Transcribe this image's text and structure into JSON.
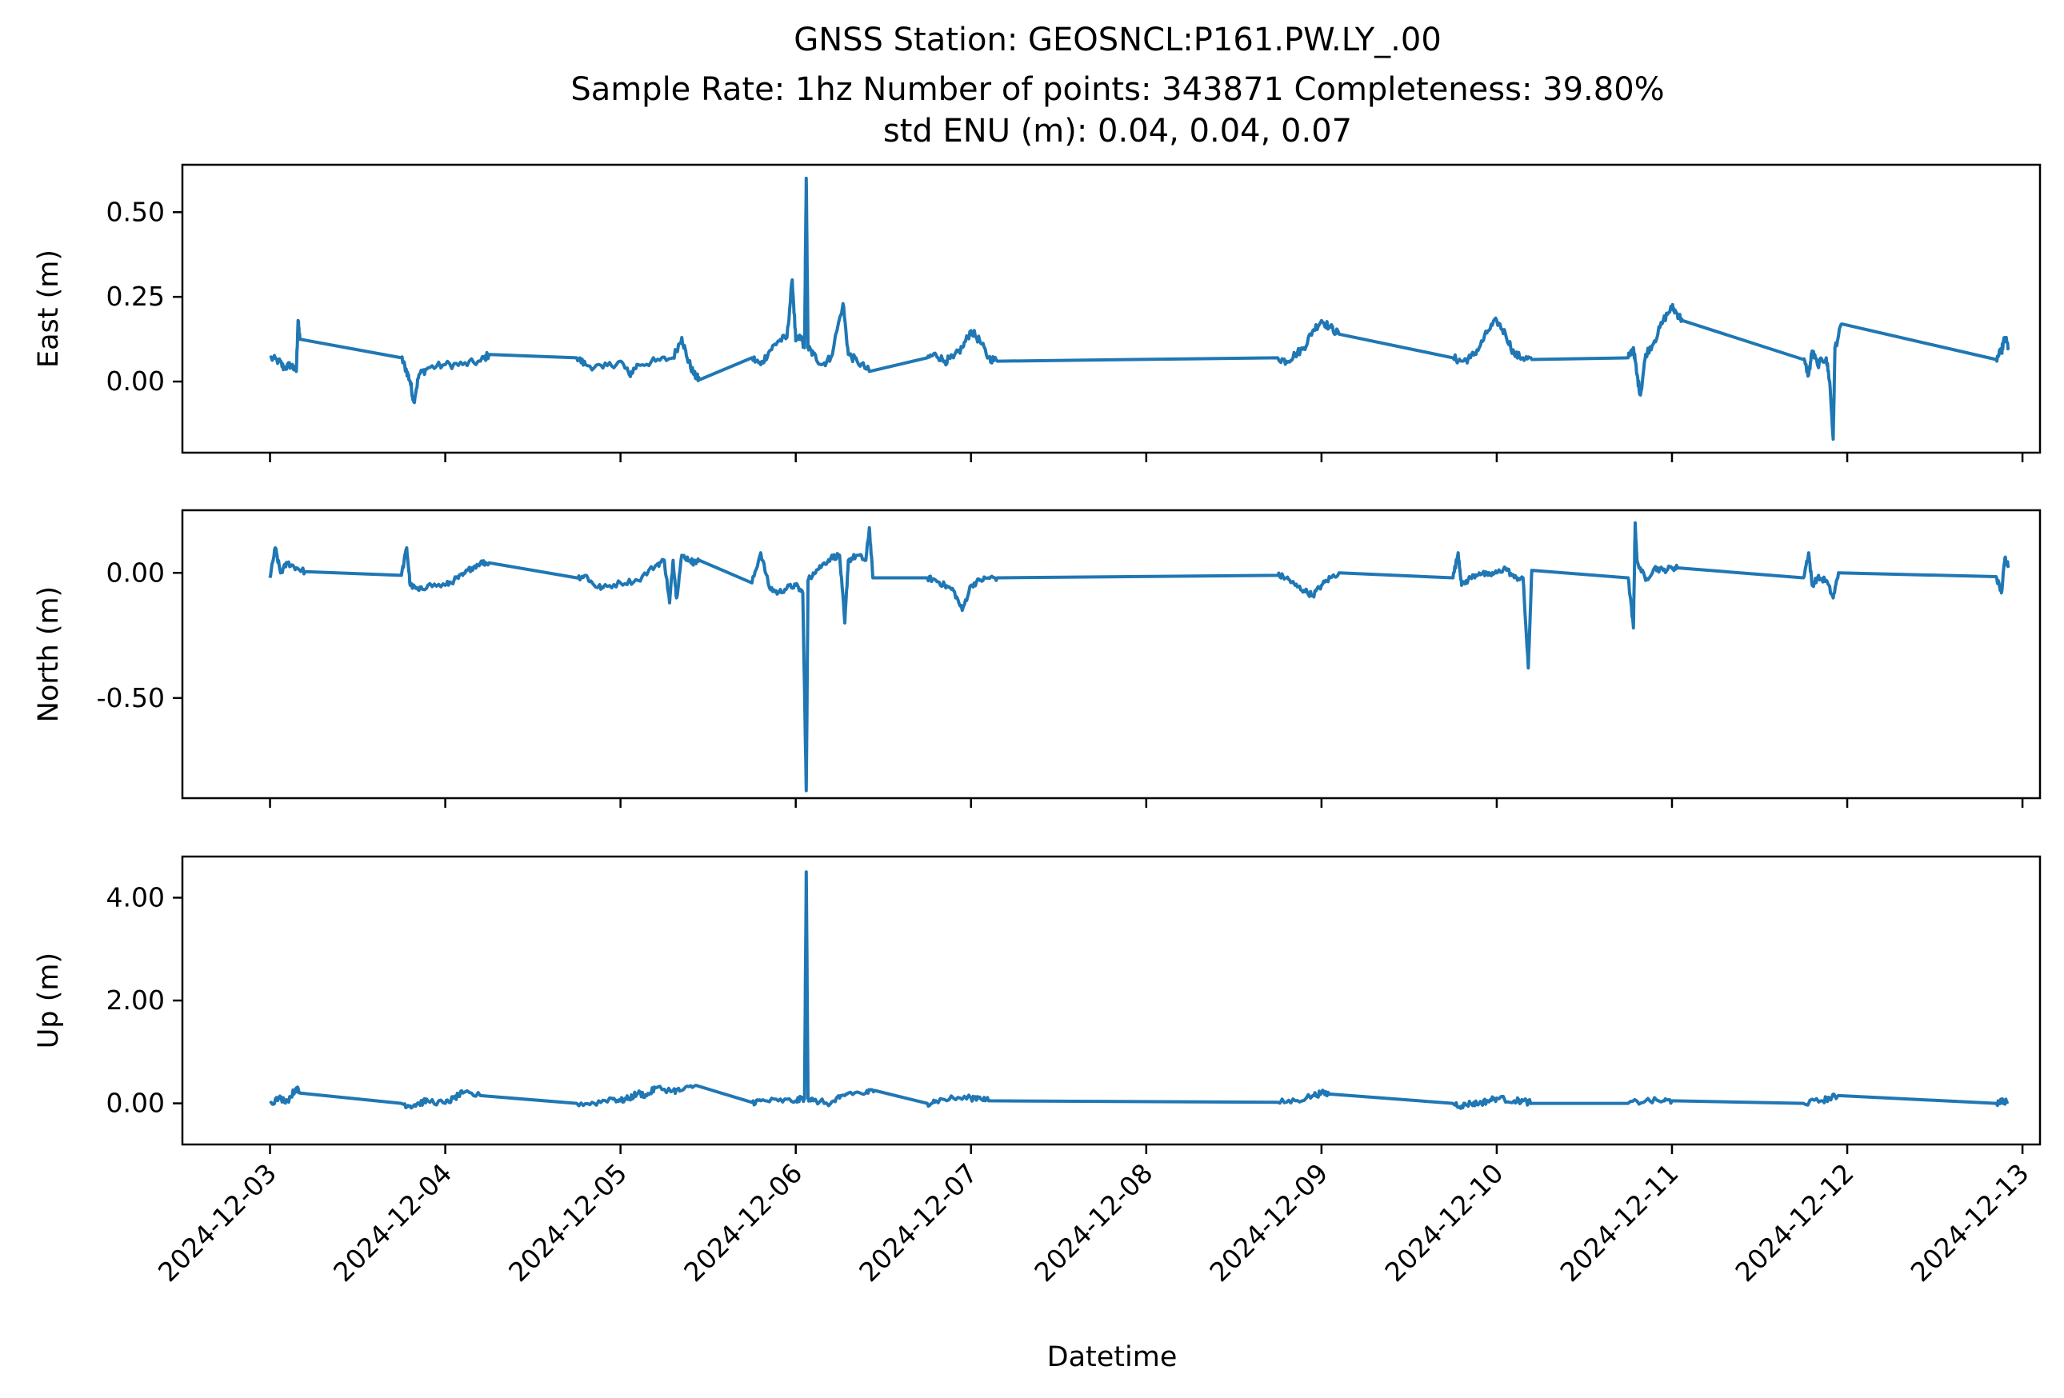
{
  "chart_data": {
    "type": "line",
    "title_lines": [
      "GNSS Station: GEOSNCL:P161.PW.LY_.00",
      "Sample Rate: 1hz   Number of points: 343871    Completeness:  39.80%",
      "std ENU (m):  0.04, 0.04, 0.07"
    ],
    "xlabel": "Datetime",
    "x_ticks": [
      "2024-12-03",
      "2024-12-04",
      "2024-12-05",
      "2024-12-06",
      "2024-12-07",
      "2024-12-08",
      "2024-12-09",
      "2024-12-10",
      "2024-12-11",
      "2024-12-12",
      "2024-12-13"
    ],
    "xlim_days": [
      -0.5,
      10.1
    ],
    "color": "#1f77b4",
    "grid": false,
    "panels": [
      {
        "ylabel": "East (m)",
        "ylim": [
          -0.21,
          0.64
        ],
        "y_ticks": [
          0.5,
          0.25,
          0.0
        ],
        "y_tick_labels": [
          "0.50",
          "0.25",
          "0.00"
        ],
        "noise": 0.012,
        "points": [
          [
            0.0,
            0.07
          ],
          [
            0.05,
            0.06
          ],
          [
            0.08,
            0.04
          ],
          [
            0.12,
            0.05
          ],
          [
            0.15,
            0.03
          ],
          [
            0.16,
            0.18
          ],
          [
            0.17,
            0.125
          ],
          [
            0.75,
            0.07
          ],
          [
            0.78,
            0.03
          ],
          [
            0.8,
            0.0
          ],
          [
            0.82,
            -0.06
          ],
          [
            0.85,
            0.02
          ],
          [
            0.9,
            0.04
          ],
          [
            1.0,
            0.05
          ],
          [
            1.1,
            0.05
          ],
          [
            1.2,
            0.06
          ],
          [
            1.25,
            0.08
          ],
          [
            1.75,
            0.07
          ],
          [
            1.8,
            0.05
          ],
          [
            1.9,
            0.04
          ],
          [
            2.0,
            0.06
          ],
          [
            2.05,
            0.02
          ],
          [
            2.1,
            0.05
          ],
          [
            2.2,
            0.06
          ],
          [
            2.3,
            0.07
          ],
          [
            2.35,
            0.13
          ],
          [
            2.38,
            0.07
          ],
          [
            2.42,
            0.02
          ],
          [
            2.45,
            0.005
          ],
          [
            2.75,
            0.07
          ],
          [
            2.8,
            0.05
          ],
          [
            2.85,
            0.09
          ],
          [
            2.9,
            0.12
          ],
          [
            2.95,
            0.13
          ],
          [
            2.98,
            0.3
          ],
          [
            3.0,
            0.12
          ],
          [
            3.03,
            0.13
          ],
          [
            3.05,
            0.1
          ],
          [
            3.06,
            0.6
          ],
          [
            3.07,
            0.1
          ],
          [
            3.1,
            0.08
          ],
          [
            3.15,
            0.05
          ],
          [
            3.2,
            0.07
          ],
          [
            3.27,
            0.23
          ],
          [
            3.3,
            0.08
          ],
          [
            3.35,
            0.06
          ],
          [
            3.42,
            0.03
          ],
          [
            3.75,
            0.07
          ],
          [
            3.8,
            0.08
          ],
          [
            3.85,
            0.06
          ],
          [
            3.9,
            0.07
          ],
          [
            3.95,
            0.1
          ],
          [
            4.0,
            0.15
          ],
          [
            4.05,
            0.12
          ],
          [
            4.1,
            0.07
          ],
          [
            4.15,
            0.06
          ],
          [
            5.75,
            0.07
          ],
          [
            5.8,
            0.06
          ],
          [
            5.85,
            0.08
          ],
          [
            5.9,
            0.1
          ],
          [
            5.95,
            0.15
          ],
          [
            6.0,
            0.18
          ],
          [
            6.05,
            0.16
          ],
          [
            6.1,
            0.14
          ],
          [
            6.75,
            0.07
          ],
          [
            6.8,
            0.06
          ],
          [
            6.85,
            0.07
          ],
          [
            6.9,
            0.1
          ],
          [
            6.95,
            0.15
          ],
          [
            7.0,
            0.18
          ],
          [
            7.05,
            0.14
          ],
          [
            7.1,
            0.08
          ],
          [
            7.15,
            0.07
          ],
          [
            7.2,
            0.065
          ],
          [
            7.75,
            0.07
          ],
          [
            7.78,
            0.1
          ],
          [
            7.8,
            0.02
          ],
          [
            7.82,
            -0.04
          ],
          [
            7.85,
            0.08
          ],
          [
            7.9,
            0.12
          ],
          [
            7.95,
            0.18
          ],
          [
            8.0,
            0.22
          ],
          [
            8.03,
            0.2
          ],
          [
            8.06,
            0.18
          ],
          [
            8.75,
            0.065
          ],
          [
            8.78,
            0.02
          ],
          [
            8.8,
            0.09
          ],
          [
            8.83,
            0.05
          ],
          [
            8.88,
            0.07
          ],
          [
            8.9,
            0.0
          ],
          [
            8.92,
            -0.17
          ],
          [
            8.93,
            0.1
          ],
          [
            8.97,
            0.17
          ],
          [
            9.85,
            0.065
          ],
          [
            9.88,
            0.09
          ],
          [
            9.9,
            0.13
          ],
          [
            9.92,
            0.1
          ]
        ]
      },
      {
        "ylabel": "North (m)",
        "ylim": [
          -0.9,
          0.25
        ],
        "y_ticks": [
          0.0,
          -0.5
        ],
        "y_tick_labels": [
          "0.00",
          "-0.50"
        ],
        "noise": 0.012,
        "points": [
          [
            0.0,
            -0.02
          ],
          [
            0.03,
            0.1
          ],
          [
            0.06,
            0.0
          ],
          [
            0.1,
            0.04
          ],
          [
            0.15,
            0.02
          ],
          [
            0.2,
            0.005
          ],
          [
            0.75,
            -0.01
          ],
          [
            0.78,
            0.1
          ],
          [
            0.8,
            -0.05
          ],
          [
            0.85,
            -0.07
          ],
          [
            0.9,
            -0.05
          ],
          [
            1.0,
            -0.05
          ],
          [
            1.05,
            -0.03
          ],
          [
            1.1,
            -0.01
          ],
          [
            1.15,
            0.02
          ],
          [
            1.2,
            0.04
          ],
          [
            1.25,
            0.04
          ],
          [
            1.75,
            -0.02
          ],
          [
            1.8,
            -0.01
          ],
          [
            1.85,
            -0.05
          ],
          [
            1.9,
            -0.06
          ],
          [
            2.0,
            -0.04
          ],
          [
            2.1,
            -0.03
          ],
          [
            2.2,
            0.03
          ],
          [
            2.25,
            0.05
          ],
          [
            2.28,
            -0.12
          ],
          [
            2.3,
            0.05
          ],
          [
            2.32,
            -0.1
          ],
          [
            2.35,
            0.07
          ],
          [
            2.4,
            0.05
          ],
          [
            2.42,
            0.04
          ],
          [
            2.45,
            0.05
          ],
          [
            2.75,
            -0.04
          ],
          [
            2.8,
            0.08
          ],
          [
            2.85,
            -0.06
          ],
          [
            2.9,
            -0.08
          ],
          [
            2.95,
            -0.06
          ],
          [
            3.0,
            -0.05
          ],
          [
            3.04,
            -0.08
          ],
          [
            3.06,
            -0.87
          ],
          [
            3.07,
            -0.03
          ],
          [
            3.1,
            0.0
          ],
          [
            3.15,
            0.03
          ],
          [
            3.2,
            0.06
          ],
          [
            3.25,
            0.07
          ],
          [
            3.28,
            -0.2
          ],
          [
            3.3,
            0.05
          ],
          [
            3.35,
            0.07
          ],
          [
            3.4,
            0.05
          ],
          [
            3.42,
            0.18
          ],
          [
            3.44,
            -0.02
          ],
          [
            3.75,
            -0.02
          ],
          [
            3.8,
            -0.03
          ],
          [
            3.85,
            -0.05
          ],
          [
            3.9,
            -0.07
          ],
          [
            3.95,
            -0.15
          ],
          [
            4.0,
            -0.05
          ],
          [
            4.05,
            -0.03
          ],
          [
            4.1,
            -0.02
          ],
          [
            4.15,
            -0.02
          ],
          [
            5.75,
            -0.01
          ],
          [
            5.8,
            -0.02
          ],
          [
            5.85,
            -0.05
          ],
          [
            5.9,
            -0.07
          ],
          [
            5.95,
            -0.09
          ],
          [
            6.0,
            -0.05
          ],
          [
            6.05,
            -0.02
          ],
          [
            6.1,
            0.0
          ],
          [
            6.75,
            -0.02
          ],
          [
            6.78,
            0.08
          ],
          [
            6.8,
            -0.05
          ],
          [
            6.85,
            -0.02
          ],
          [
            6.9,
            0.0
          ],
          [
            6.95,
            -0.01
          ],
          [
            7.0,
            0.0
          ],
          [
            7.05,
            0.02
          ],
          [
            7.1,
            -0.02
          ],
          [
            7.15,
            -0.02
          ],
          [
            7.18,
            -0.38
          ],
          [
            7.2,
            0.01
          ],
          [
            7.75,
            -0.02
          ],
          [
            7.78,
            -0.22
          ],
          [
            7.79,
            0.2
          ],
          [
            7.8,
            0.05
          ],
          [
            7.85,
            -0.03
          ],
          [
            7.9,
            0.02
          ],
          [
            7.95,
            0.01
          ],
          [
            8.0,
            0.02
          ],
          [
            8.03,
            0.02
          ],
          [
            8.75,
            -0.02
          ],
          [
            8.78,
            0.08
          ],
          [
            8.8,
            -0.05
          ],
          [
            8.83,
            -0.02
          ],
          [
            8.88,
            -0.03
          ],
          [
            8.92,
            -0.1
          ],
          [
            8.95,
            0.0
          ],
          [
            9.85,
            -0.015
          ],
          [
            9.88,
            -0.08
          ],
          [
            9.9,
            0.06
          ],
          [
            9.92,
            0.03
          ]
        ]
      },
      {
        "ylabel": "Up (m)",
        "ylim": [
          -0.8,
          4.8
        ],
        "y_ticks": [
          4.0,
          2.0,
          0.0
        ],
        "y_tick_labels": [
          "4.00",
          "2.00",
          "0.00"
        ],
        "noise": 0.06,
        "points": [
          [
            0.0,
            0.0
          ],
          [
            0.05,
            0.1
          ],
          [
            0.1,
            0.05
          ],
          [
            0.15,
            0.3
          ],
          [
            0.17,
            0.2
          ],
          [
            0.75,
            0.0
          ],
          [
            0.8,
            -0.05
          ],
          [
            0.85,
            0.0
          ],
          [
            0.9,
            0.05
          ],
          [
            1.0,
            0.0
          ],
          [
            1.05,
            0.1
          ],
          [
            1.1,
            0.2
          ],
          [
            1.2,
            0.15
          ],
          [
            1.75,
            0.0
          ],
          [
            1.85,
            0.0
          ],
          [
            1.95,
            0.1
          ],
          [
            2.0,
            0.05
          ],
          [
            2.05,
            0.1
          ],
          [
            2.1,
            0.2
          ],
          [
            2.15,
            0.15
          ],
          [
            2.2,
            0.3
          ],
          [
            2.3,
            0.25
          ],
          [
            2.35,
            0.25
          ],
          [
            2.43,
            0.35
          ],
          [
            2.75,
            0.02
          ],
          [
            2.8,
            0.05
          ],
          [
            2.9,
            0.05
          ],
          [
            3.0,
            0.05
          ],
          [
            3.05,
            0.1
          ],
          [
            3.06,
            4.5
          ],
          [
            3.07,
            0.1
          ],
          [
            3.1,
            0.05
          ],
          [
            3.2,
            0.0
          ],
          [
            3.25,
            0.1
          ],
          [
            3.3,
            0.2
          ],
          [
            3.4,
            0.2
          ],
          [
            3.45,
            0.25
          ],
          [
            3.75,
            0.0
          ],
          [
            3.8,
            0.05
          ],
          [
            3.9,
            0.1
          ],
          [
            4.0,
            0.1
          ],
          [
            4.05,
            0.12
          ],
          [
            4.1,
            0.05
          ],
          [
            5.75,
            0.02
          ],
          [
            5.85,
            0.05
          ],
          [
            5.95,
            0.15
          ],
          [
            6.0,
            0.2
          ],
          [
            6.05,
            0.18
          ],
          [
            6.75,
            0.0
          ],
          [
            6.8,
            -0.05
          ],
          [
            6.85,
            0.0
          ],
          [
            6.9,
            0.0
          ],
          [
            6.95,
            0.05
          ],
          [
            7.0,
            0.1
          ],
          [
            7.1,
            0.05
          ],
          [
            7.15,
            0.05
          ],
          [
            7.2,
            0.0
          ],
          [
            7.75,
            0.0
          ],
          [
            7.85,
            0.05
          ],
          [
            7.95,
            0.05
          ],
          [
            8.0,
            0.05
          ],
          [
            8.75,
            0.0
          ],
          [
            8.85,
            0.05
          ],
          [
            8.9,
            0.1
          ],
          [
            8.95,
            0.15
          ],
          [
            9.85,
            0.0
          ],
          [
            9.88,
            0.05
          ],
          [
            9.92,
            0.03
          ]
        ]
      }
    ]
  }
}
